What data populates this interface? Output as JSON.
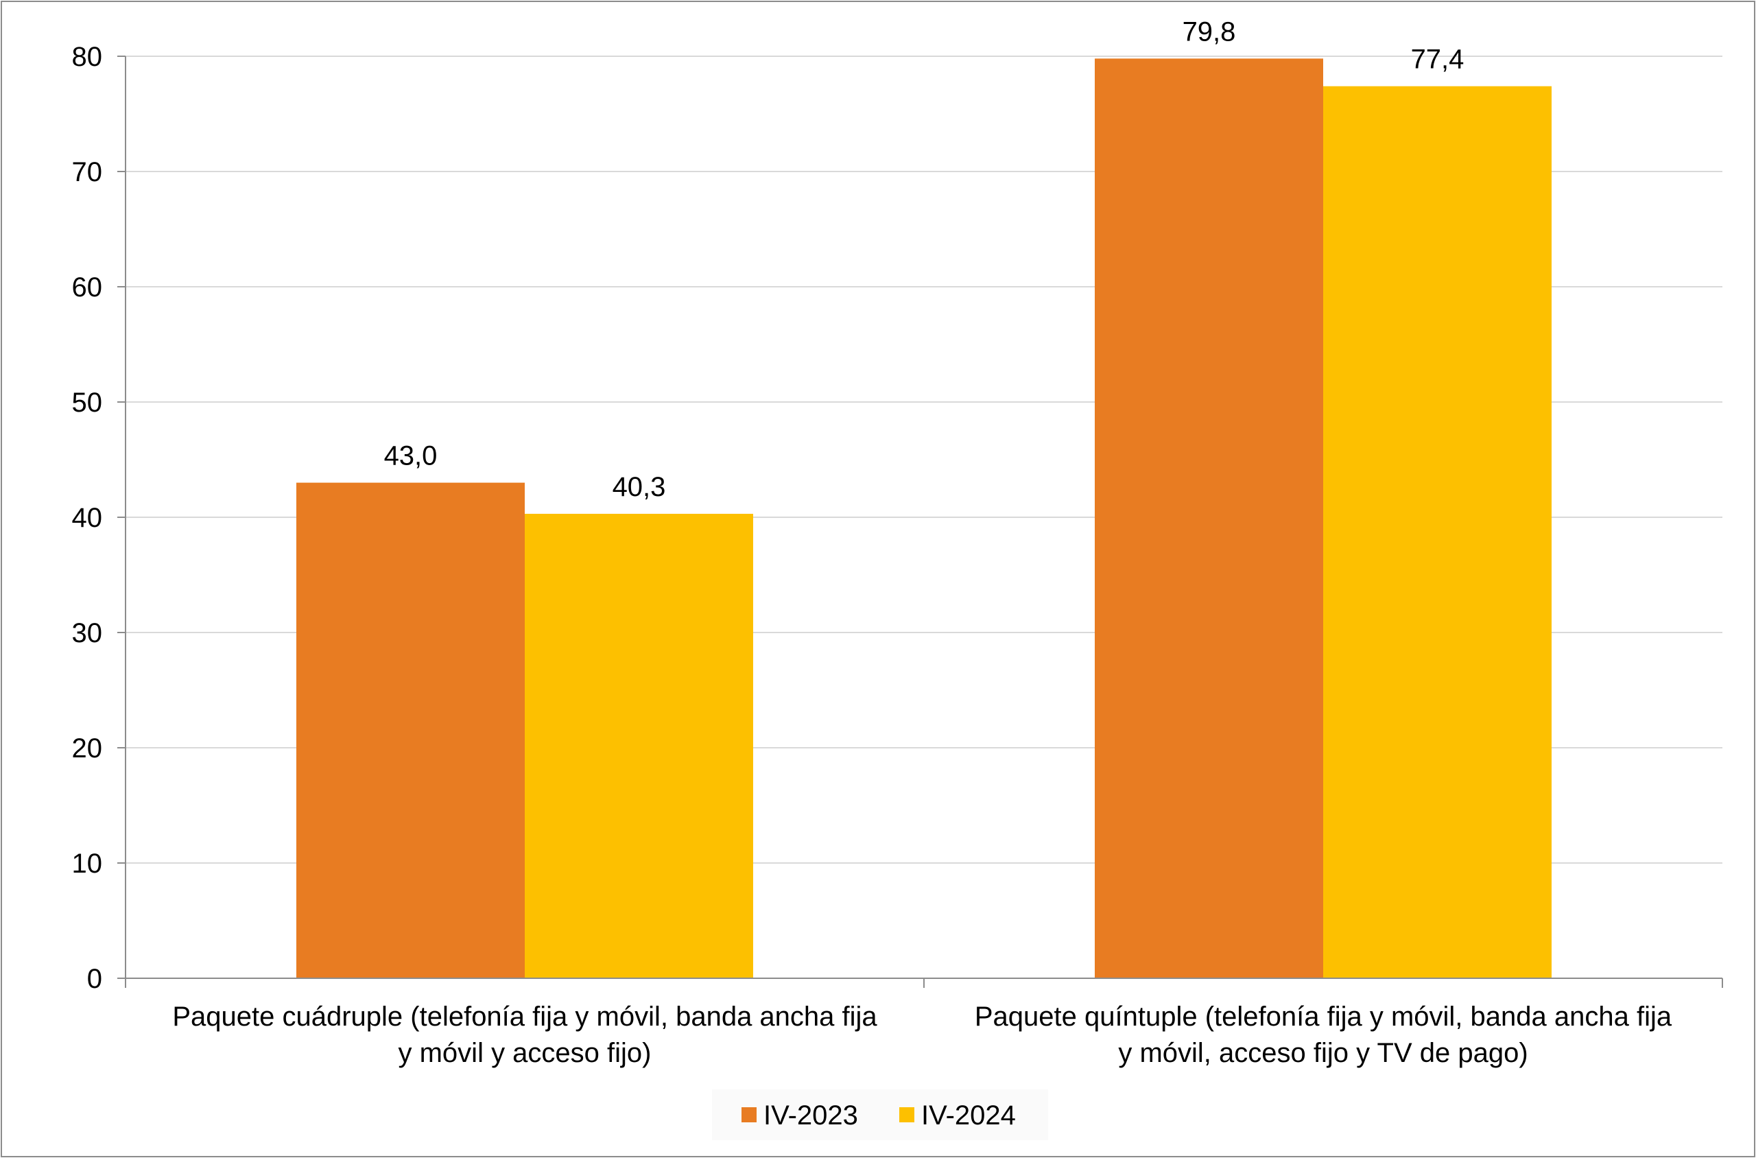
{
  "chart_data": {
    "type": "bar",
    "categories": [
      [
        "Paquete cuádruple (telefonía fija y móvil, banda ancha fija",
        "y móvil y acceso fijo)"
      ],
      [
        "Paquete quíntuple (telefonía fija y móvil, banda ancha fija",
        "y móvil, acceso fijo y TV de pago)"
      ]
    ],
    "series": [
      {
        "name": "IV-2023",
        "values": [
          43.0,
          79.8
        ],
        "labels": [
          "43,0",
          "79,8"
        ],
        "color": "#e87c22"
      },
      {
        "name": "IV-2024",
        "values": [
          40.3,
          77.4
        ],
        "labels": [
          "40,3",
          "77,4"
        ],
        "color": "#fdc000"
      }
    ],
    "yticks": [
      "0",
      "10",
      "20",
      "30",
      "40",
      "50",
      "60",
      "70",
      "80"
    ],
    "ylim": [
      0,
      80
    ],
    "grid": true,
    "legend_position": "bottom",
    "title": "",
    "xlabel": "",
    "ylabel": ""
  }
}
